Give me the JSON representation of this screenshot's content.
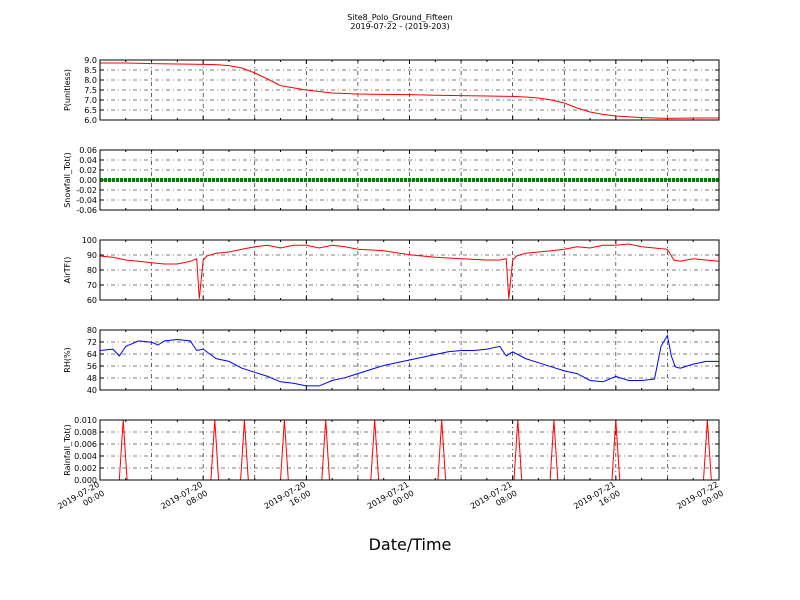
{
  "figure": {
    "title": "Site8_Polo_Ground_Fifteen",
    "subtitle": "2019-07-22 - (2019-203)",
    "xlabel": "Date/Time",
    "x_ticks": [
      "2019-07-20 00:00",
      "2019-07-20 08:00",
      "2019-07-20 16:00",
      "2019-07-21 00:00",
      "2019-07-21 08:00",
      "2019-07-21 16:00",
      "2019-07-22 00:00"
    ]
  },
  "chart_data": [
    {
      "type": "line",
      "ylabel": "P(unitless)",
      "xlim": [
        0,
        48
      ],
      "ylim": [
        6.0,
        9.0
      ],
      "yticks": [
        "6.0",
        "6.5",
        "7.0",
        "7.5",
        "8.0",
        "8.5",
        "9.0"
      ],
      "grid": true,
      "color": "#ff0000",
      "x": [
        0,
        2,
        4,
        6,
        8,
        9,
        10,
        11,
        12,
        13,
        14,
        16,
        18,
        20,
        22,
        24,
        26,
        28,
        30,
        32,
        33,
        34,
        35,
        36,
        37,
        38,
        39,
        40,
        42,
        44,
        46,
        48
      ],
      "values": [
        8.85,
        8.85,
        8.82,
        8.8,
        8.78,
        8.77,
        8.72,
        8.6,
        8.35,
        8.05,
        7.72,
        7.5,
        7.35,
        7.3,
        7.28,
        7.27,
        7.24,
        7.22,
        7.2,
        7.18,
        7.15,
        7.1,
        7.0,
        6.85,
        6.6,
        6.4,
        6.28,
        6.2,
        6.12,
        6.08,
        6.1,
        6.1
      ]
    },
    {
      "type": "line",
      "ylabel": "Snowfall_Tot()",
      "xlim": [
        0,
        48
      ],
      "ylim": [
        -0.06,
        0.06
      ],
      "yticks": [
        "-0.06",
        "-0.04",
        "-0.02",
        "0.00",
        "0.02",
        "0.04",
        "0.06"
      ],
      "grid": true,
      "color": "#008000",
      "x": [
        0,
        48
      ],
      "values": [
        0,
        0
      ]
    },
    {
      "type": "line",
      "ylabel": "AirTF()",
      "xlim": [
        0,
        48
      ],
      "ylim": [
        55,
        100
      ],
      "yticks": [
        "60",
        "70",
        "80",
        "90",
        "100"
      ],
      "grid": true,
      "color": "#ff0000",
      "x": [
        0,
        1,
        2,
        3,
        4,
        5,
        6,
        7,
        7.5,
        7.7,
        8,
        8.3,
        9,
        10,
        11,
        12,
        13,
        14,
        15,
        16,
        17,
        18,
        19,
        20,
        22,
        24,
        26,
        28,
        30,
        31,
        31.5,
        31.7,
        32,
        32.3,
        33,
        34,
        35,
        36,
        37,
        38,
        39,
        40,
        41,
        42,
        43,
        44,
        44.5,
        45,
        46,
        47,
        48
      ],
      "values": [
        88,
        87,
        85,
        84,
        83,
        82,
        82,
        84,
        86,
        56,
        85,
        88,
        90,
        91,
        93,
        95,
        96,
        94,
        96,
        96,
        94,
        96,
        95,
        93,
        92,
        89,
        87,
        86,
        85,
        85,
        86,
        56,
        85,
        88,
        90,
        91,
        92,
        93,
        95,
        94,
        96,
        96,
        97,
        95,
        94,
        93,
        85,
        84,
        86,
        85,
        84
      ]
    },
    {
      "type": "line",
      "ylabel": "RH(%)",
      "xlim": [
        0,
        48
      ],
      "ylim": [
        40,
        84
      ],
      "yticks": [
        "40",
        "48",
        "56",
        "64",
        "72",
        "80"
      ],
      "grid": true,
      "color": "#0000ff",
      "x": [
        0,
        1,
        1.5,
        2,
        3,
        4,
        4.5,
        5,
        6,
        7,
        7.5,
        8,
        9,
        10,
        11,
        12,
        13,
        14,
        15,
        16,
        17,
        18,
        19,
        20,
        21,
        22,
        23,
        24,
        25,
        26,
        27,
        28,
        29,
        30,
        31,
        31.5,
        32,
        33,
        34,
        35,
        36,
        37,
        38,
        39,
        40,
        41,
        42,
        43,
        43.5,
        44,
        44.3,
        44.6,
        45,
        46,
        47,
        48
      ],
      "values": [
        69,
        70,
        65,
        72,
        76,
        75,
        73,
        76,
        77,
        76,
        69,
        70,
        63,
        61,
        56,
        53,
        50,
        46,
        45,
        43,
        43,
        47,
        49,
        52,
        55,
        58,
        60,
        62,
        64,
        66,
        68,
        69,
        69,
        70,
        72,
        65,
        68,
        63,
        60,
        57,
        54,
        52,
        47,
        46,
        50,
        47,
        47,
        48,
        72,
        80,
        65,
        57,
        56,
        59,
        61,
        61
      ]
    },
    {
      "type": "line",
      "ylabel": "Rainfall_Tot()",
      "xlim": [
        0,
        48
      ],
      "ylim": [
        0,
        0.01
      ],
      "yticks": [
        "0.000",
        "0.002",
        "0.004",
        "0.006",
        "0.008",
        "0.010"
      ],
      "grid": true,
      "color": "#ff0000",
      "x": [
        0,
        1.5,
        1.8,
        2.1,
        8.6,
        8.9,
        9.2,
        10.9,
        11.2,
        11.5,
        14.0,
        14.3,
        14.6,
        17.2,
        17.5,
        17.8,
        21.0,
        21.3,
        21.6,
        26.2,
        26.5,
        26.8,
        32.1,
        32.4,
        32.7,
        34.9,
        35.2,
        35.5,
        39.7,
        40.0,
        40.3,
        46.8,
        47.1,
        47.4,
        48
      ],
      "values": [
        0,
        0,
        0.01,
        0,
        0,
        0.01,
        0,
        0,
        0.01,
        0,
        0,
        0.01,
        0,
        0,
        0.01,
        0,
        0,
        0.01,
        0,
        0,
        0.01,
        0,
        0,
        0.01,
        0,
        0,
        0.01,
        0,
        0,
        0.01,
        0,
        0,
        0.01,
        0,
        0
      ]
    }
  ]
}
